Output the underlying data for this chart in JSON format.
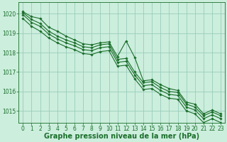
{
  "background_color": "#cceedd",
  "grid_color": "#99ccbb",
  "line_color": "#1a6e2a",
  "title": "Graphe pression niveau de la mer (hPa)",
  "title_fontsize": 7,
  "tick_fontsize": 5.5,
  "ylim": [
    1014.4,
    1020.6
  ],
  "xlim": [
    -0.5,
    23.5
  ],
  "yticks": [
    1015,
    1016,
    1017,
    1018,
    1019,
    1020
  ],
  "xticks": [
    0,
    1,
    2,
    3,
    4,
    5,
    6,
    7,
    8,
    9,
    10,
    11,
    12,
    13,
    14,
    15,
    16,
    17,
    18,
    19,
    20,
    21,
    22,
    23
  ],
  "series": [
    [
      1020.1,
      1019.85,
      1019.75,
      1019.3,
      1019.1,
      1018.85,
      1018.65,
      1018.45,
      1018.4,
      1018.5,
      1018.55,
      1017.8,
      1018.6,
      1017.75,
      1016.55,
      1016.6,
      1016.35,
      1016.15,
      1016.05,
      1015.45,
      1015.35,
      1014.85,
      1015.05,
      1014.85
    ],
    [
      1020.05,
      1019.7,
      1019.5,
      1019.1,
      1018.85,
      1018.65,
      1018.5,
      1018.3,
      1018.25,
      1018.4,
      1018.45,
      1017.65,
      1017.7,
      1017.0,
      1016.45,
      1016.5,
      1016.2,
      1016.0,
      1015.95,
      1015.35,
      1015.2,
      1014.75,
      1014.95,
      1014.75
    ],
    [
      1019.95,
      1019.55,
      1019.35,
      1018.95,
      1018.7,
      1018.5,
      1018.35,
      1018.15,
      1018.1,
      1018.25,
      1018.3,
      1017.5,
      1017.55,
      1016.85,
      1016.3,
      1016.35,
      1016.05,
      1015.85,
      1015.8,
      1015.2,
      1015.05,
      1014.6,
      1014.8,
      1014.6
    ],
    [
      1019.75,
      1019.35,
      1019.1,
      1018.75,
      1018.5,
      1018.3,
      1018.15,
      1017.95,
      1017.9,
      1018.05,
      1018.1,
      1017.3,
      1017.35,
      1016.65,
      1016.1,
      1016.15,
      1015.85,
      1015.65,
      1015.6,
      1015.0,
      1014.85,
      1014.4,
      1014.6,
      1014.4
    ]
  ]
}
